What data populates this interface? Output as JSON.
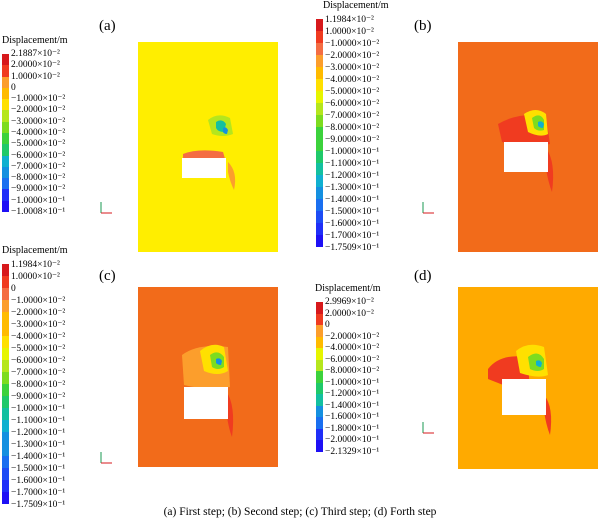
{
  "caption": "(a) First step; (b) Second step; (c) Third step; (d) Forth step",
  "panels": {
    "a": {
      "label": "(a)",
      "bg": "#ffee00"
    },
    "b": {
      "label": "(b)",
      "bg": "#f26b1a"
    },
    "c": {
      "label": "(c)",
      "bg": "#f26b1a"
    },
    "d": {
      "label": "(d)",
      "bg": "#ffaa00"
    }
  },
  "legends": {
    "a": {
      "title": "Displacement/m",
      "ticks": [
        "2.1887×10⁻²",
        "2.0000×10⁻²",
        "1.0000×10⁻²",
        "0",
        "−1.0000×10⁻²",
        "−2.0000×10⁻²",
        "−3.0000×10⁻²",
        "−4.0000×10⁻²",
        "−5.0000×10⁻²",
        "−6.0000×10⁻²",
        "−7.0000×10⁻²",
        "−8.0000×10⁻²",
        "−9.0000×10⁻²",
        "−1.0000×10⁻¹",
        "−1.0008×10⁻¹"
      ]
    },
    "b": {
      "title": "Displacement/m",
      "ticks": [
        "1.1984×10⁻²",
        "1.0000×10⁻²",
        "−1.0000×10⁻²",
        "−2.0000×10⁻²",
        "−3.0000×10⁻²",
        "−4.0000×10⁻²",
        "−5.0000×10⁻²",
        "−6.0000×10⁻²",
        "−7.0000×10⁻²",
        "−8.0000×10⁻²",
        "−9.0000×10⁻²",
        "−1.0000×10⁻¹",
        "−1.1000×10⁻¹",
        "−1.2000×10⁻¹",
        "−1.3000×10⁻¹",
        "−1.4000×10⁻¹",
        "−1.5000×10⁻¹",
        "−1.6000×10⁻¹",
        "−1.7000×10⁻¹",
        "−1.7509×10⁻¹"
      ]
    },
    "c": {
      "title": "Displacement/m",
      "ticks": [
        "1.1984×10⁻²",
        "1.0000×10⁻²",
        "0",
        "−1.0000×10⁻²",
        "−2.0000×10⁻²",
        "−3.0000×10⁻²",
        "−4.0000×10⁻²",
        "−5.0000×10⁻²",
        "−6.0000×10⁻²",
        "−7.0000×10⁻²",
        "−8.0000×10⁻²",
        "−9.0000×10⁻²",
        "−1.0000×10⁻¹",
        "−1.1000×10⁻¹",
        "−1.2000×10⁻¹",
        "−1.3000×10⁻¹",
        "−1.4000×10⁻¹",
        "−1.5000×10⁻¹",
        "−1.6000×10⁻¹",
        "−1.7000×10⁻¹",
        "−1.7509×10⁻¹"
      ]
    },
    "d": {
      "title": "Displacement/m",
      "ticks": [
        "2.9969×10⁻²",
        "2.0000×10⁻²",
        "0",
        "−2.0000×10⁻²",
        "−4.0000×10⁻²",
        "−6.0000×10⁻²",
        "−8.0000×10⁻²",
        "−1.0000×10⁻¹",
        "−1.2000×10⁻¹",
        "−1.4000×10⁻¹",
        "−1.6000×10⁻¹",
        "−1.8000×10⁻¹",
        "−2.0000×10⁻¹",
        "−2.1329×10⁻¹"
      ]
    }
  },
  "colors": {
    "ramp": [
      "#d7191c",
      "#f03b20",
      "#f46d43",
      "#fc9e2c",
      "#ffbb00",
      "#ffe000",
      "#e6f500",
      "#b5e61d",
      "#7ddc1f",
      "#3cd23c",
      "#1fc96a",
      "#13c0a0",
      "#10b0d0",
      "#1590e0",
      "#1a6ff0",
      "#1d4cf5",
      "#1f2ff8",
      "#1e10f5"
    ]
  }
}
